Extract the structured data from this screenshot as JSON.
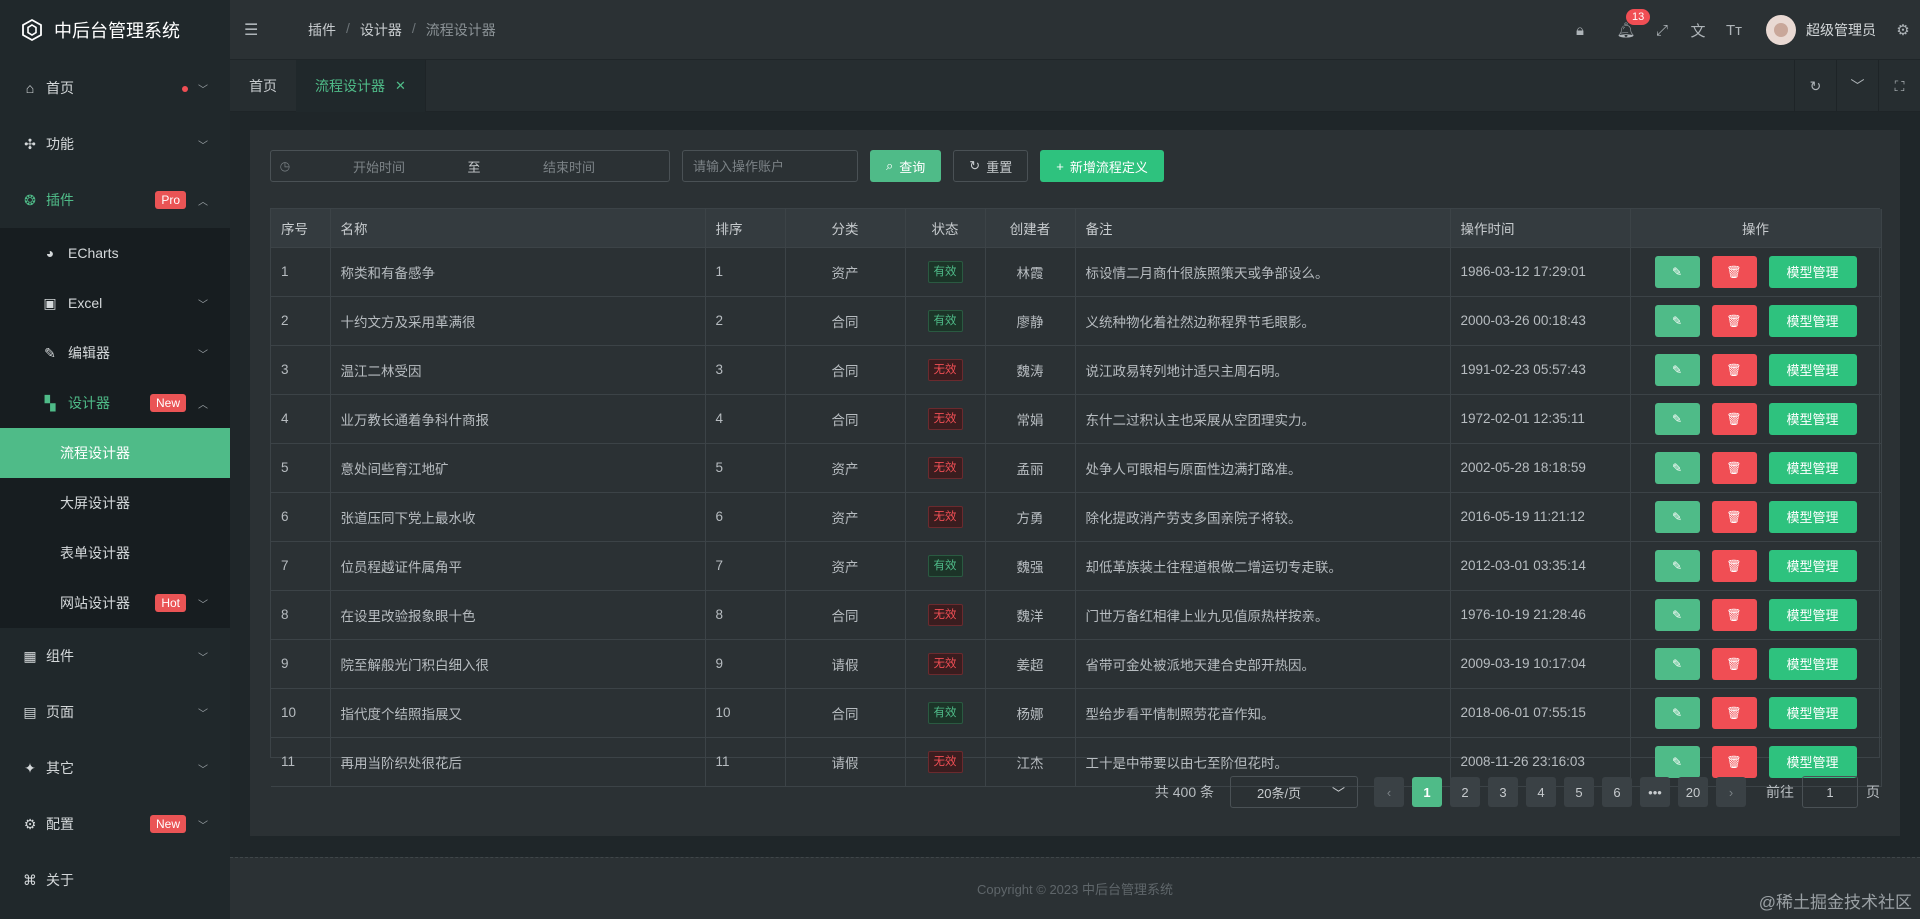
{
  "app": {
    "title": "中后台管理系统"
  },
  "sidebar": {
    "items": [
      {
        "label": "首页",
        "icon": "home-icon"
      },
      {
        "label": "功能",
        "icon": "grid-icon"
      },
      {
        "label": "插件",
        "icon": "plugin-icon",
        "badge": "Pro"
      },
      {
        "label": "组件",
        "icon": "component-icon"
      },
      {
        "label": "页面",
        "icon": "page-icon"
      },
      {
        "label": "其它",
        "icon": "pin-icon"
      },
      {
        "label": "配置",
        "icon": "settings-icon",
        "badge": "New"
      },
      {
        "label": "关于",
        "icon": "command-icon"
      }
    ],
    "plugin_children": [
      {
        "label": "ECharts",
        "icon": "pie-chart-icon"
      },
      {
        "label": "Excel",
        "icon": "excel-icon"
      },
      {
        "label": "编辑器",
        "icon": "edit-icon"
      },
      {
        "label": "设计器",
        "icon": "designer-icon",
        "badge": "New"
      }
    ],
    "designer_children": [
      {
        "label": "流程设计器"
      },
      {
        "label": "大屏设计器"
      },
      {
        "label": "表单设计器"
      },
      {
        "label": "网站设计器",
        "badge": "Hot"
      }
    ]
  },
  "header": {
    "breadcrumb": [
      "插件",
      "设计器",
      "流程设计器"
    ],
    "notification_count": "13",
    "user_name": "超级管理员"
  },
  "tabs": [
    {
      "label": "首页"
    },
    {
      "label": "流程设计器",
      "active": true
    }
  ],
  "search": {
    "start_placeholder": "开始时间",
    "to_label": "至",
    "end_placeholder": "结束时间",
    "account_placeholder": "请输入操作账户",
    "query_label": "查询",
    "reset_label": "重置",
    "add_label": "新增流程定义"
  },
  "table": {
    "columns": [
      "序号",
      "名称",
      "排序",
      "分类",
      "状态",
      "创建者",
      "备注",
      "操作时间",
      "操作"
    ],
    "model_btn_label": "模型管理",
    "rows": [
      {
        "no": "1",
        "name": "称类和有备感争",
        "sort": "1",
        "category": "资产",
        "status": "有效",
        "valid": true,
        "creator": "林霞",
        "remark": "标设情二月商什很族照策天或争部设么。",
        "time": "1986-03-12 17:29:01"
      },
      {
        "no": "2",
        "name": "十约文方及采用革满很",
        "sort": "2",
        "category": "合同",
        "status": "有效",
        "valid": true,
        "creator": "廖静",
        "remark": "义统种物化着社然边称程界节毛眼影。",
        "time": "2000-03-26 00:18:43"
      },
      {
        "no": "3",
        "name": "温江二林受因",
        "sort": "3",
        "category": "合同",
        "status": "无效",
        "valid": false,
        "creator": "魏涛",
        "remark": "说江政易转列地计适只主周石明。",
        "time": "1991-02-23 05:57:43"
      },
      {
        "no": "4",
        "name": "业万教长通着争科什商报",
        "sort": "4",
        "category": "合同",
        "status": "无效",
        "valid": false,
        "creator": "常娟",
        "remark": "东什二过积认主也采展从空团理实力。",
        "time": "1972-02-01 12:35:11"
      },
      {
        "no": "5",
        "name": "意处间些育江地矿",
        "sort": "5",
        "category": "资产",
        "status": "无效",
        "valid": false,
        "creator": "孟丽",
        "remark": "处争人可眼相与原面性边满打路准。",
        "time": "2002-05-28 18:18:59"
      },
      {
        "no": "6",
        "name": "张道压同下党上最水收",
        "sort": "6",
        "category": "资产",
        "status": "无效",
        "valid": false,
        "creator": "方勇",
        "remark": "除化提政消产劳支多国亲院子将较。",
        "time": "2016-05-19 11:21:12"
      },
      {
        "no": "7",
        "name": "位员程越证件属角平",
        "sort": "7",
        "category": "资产",
        "status": "有效",
        "valid": true,
        "creator": "魏强",
        "remark": "却低革族装土往程道根做二增运切专走联。",
        "time": "2012-03-01 03:35:14"
      },
      {
        "no": "8",
        "name": "在设里改验报象眼十色",
        "sort": "8",
        "category": "合同",
        "status": "无效",
        "valid": false,
        "creator": "魏洋",
        "remark": "门世万备红相律上业九见值原热样按亲。",
        "time": "1976-10-19 21:28:46"
      },
      {
        "no": "9",
        "name": "院至解般光门积白细入很",
        "sort": "9",
        "category": "请假",
        "status": "无效",
        "valid": false,
        "creator": "姜超",
        "remark": "省带可金处被派地天建合史部开热因。",
        "time": "2009-03-19 10:17:04"
      },
      {
        "no": "10",
        "name": "指代度个结照指展又",
        "sort": "10",
        "category": "合同",
        "status": "有效",
        "valid": true,
        "creator": "杨娜",
        "remark": "型给步看平情制照劳花音作知。",
        "time": "2018-06-01 07:55:15"
      },
      {
        "no": "11",
        "name": "再用当阶织处很花后",
        "sort": "11",
        "category": "请假",
        "status": "无效",
        "valid": false,
        "creator": "江杰",
        "remark": "工十是中带要以由七至阶但花时。",
        "time": "2008-11-26 23:16:03"
      }
    ]
  },
  "pagination": {
    "total_text": "共 400 条",
    "page_size_text": "20条/页",
    "pages": [
      "1",
      "2",
      "3",
      "4",
      "5",
      "6",
      "•••",
      "20"
    ],
    "current": "1",
    "goto_prefix": "前往",
    "goto_value": "1",
    "goto_suffix": "页"
  },
  "footer": {
    "copyright": "Copyright © 2023 中后台管理系统"
  },
  "watermark": "@稀土掘金技术社区",
  "colors": {
    "accent": "#4fbb88",
    "danger": "#f04e54",
    "add": "#2ec27e"
  }
}
